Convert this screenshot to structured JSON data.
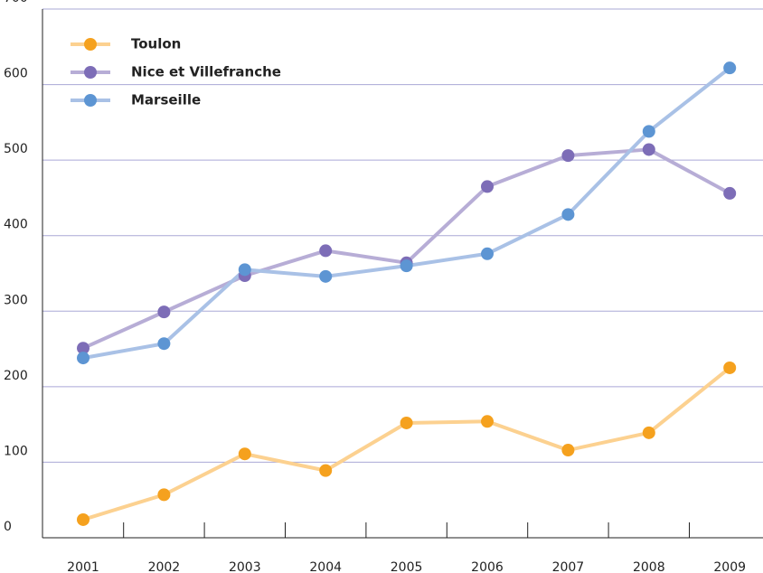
{
  "chart_data": {
    "type": "line",
    "categories": [
      "2001",
      "2002",
      "2003",
      "2004",
      "2005",
      "2006",
      "2007",
      "2008",
      "2009"
    ],
    "series": [
      {
        "name": "Toulon",
        "color": "#fcd190",
        "marker_color": "#f5a11e",
        "values": [
          24,
          57,
          111,
          89,
          152,
          154,
          116,
          139,
          225
        ]
      },
      {
        "name": "Nice et Villefranche",
        "color": "#b7add6",
        "marker_color": "#7d6db7",
        "values": [
          251,
          299,
          347,
          380,
          364,
          465,
          506,
          514,
          456
        ]
      },
      {
        "name": "Marseille",
        "color": "#a9c1e6",
        "marker_color": "#5d95d3",
        "values": [
          238,
          257,
          355,
          346,
          360,
          376,
          428,
          538,
          622
        ]
      }
    ],
    "ylim": [
      0,
      700
    ],
    "yticks": [
      0,
      100,
      200,
      300,
      400,
      500,
      600,
      700
    ],
    "grid": true,
    "grid_color": "#aaa8d6",
    "legend": "upper left"
  }
}
